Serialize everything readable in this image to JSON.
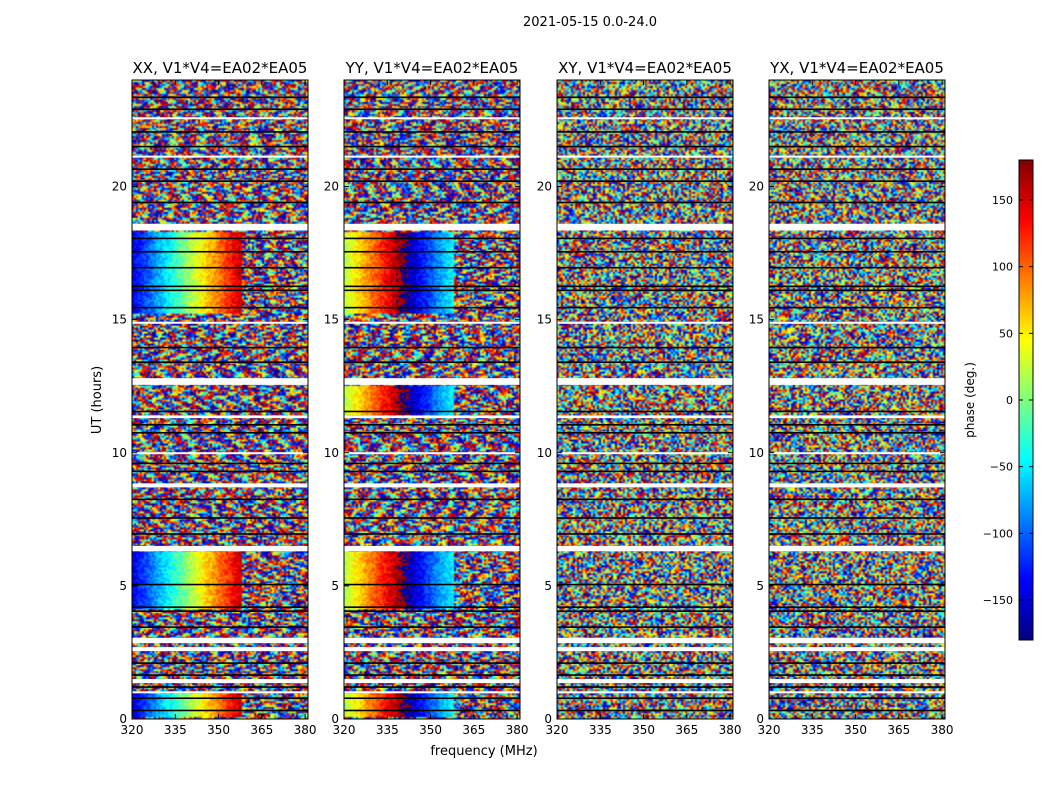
{
  "figure": {
    "suptitle": "2021-05-15 0.0-24.0",
    "xlabel": "frequency (MHz)",
    "ylabel": "UT (hours)"
  },
  "colorbar": {
    "label": "phase (deg.)",
    "range": [
      -180,
      180
    ],
    "ticks": [
      150,
      100,
      50,
      0,
      -50,
      -100,
      -150
    ],
    "tick_labels": [
      "150",
      "100",
      "50",
      "0",
      "−50",
      "−100",
      "−150"
    ],
    "colormap": [
      "#00007f",
      "#0000ff",
      "#007fff",
      "#00ffff",
      "#7fff7f",
      "#ffff00",
      "#ff7f00",
      "#ff0000",
      "#7f0000"
    ]
  },
  "chart_data": [
    {
      "type": "heatmap",
      "title": "XX, V1*V4=EA02*EA05",
      "x_ticks": [
        320,
        335,
        350,
        365,
        380
      ],
      "y_ticks": [
        0,
        5,
        10,
        15,
        20
      ],
      "xlim": [
        320,
        381
      ],
      "ylim": [
        0,
        24
      ],
      "z_quantity": "phase (deg.)"
    },
    {
      "type": "heatmap",
      "title": "YY, V1*V4=EA02*EA05",
      "x_ticks": [
        320,
        335,
        350,
        365,
        380
      ],
      "y_ticks": [
        0,
        5,
        10,
        15,
        20
      ],
      "xlim": [
        320,
        381
      ],
      "ylim": [
        0,
        24
      ],
      "z_quantity": "phase (deg.)"
    },
    {
      "type": "heatmap",
      "title": "XY, V1*V4=EA02*EA05",
      "x_ticks": [
        320,
        335,
        350,
        365,
        380
      ],
      "y_ticks": [
        0,
        5,
        10,
        15,
        20
      ],
      "xlim": [
        320,
        381
      ],
      "ylim": [
        0,
        24
      ],
      "z_quantity": "phase (deg.)"
    },
    {
      "type": "heatmap",
      "title": "YX, V1*V4=EA02*EA05",
      "x_ticks": [
        320,
        335,
        350,
        365,
        380
      ],
      "y_ticks": [
        0,
        5,
        10,
        15,
        20
      ],
      "xlim": [
        320,
        381
      ],
      "ylim": [
        0,
        24
      ],
      "z_quantity": "phase (deg.)"
    }
  ]
}
